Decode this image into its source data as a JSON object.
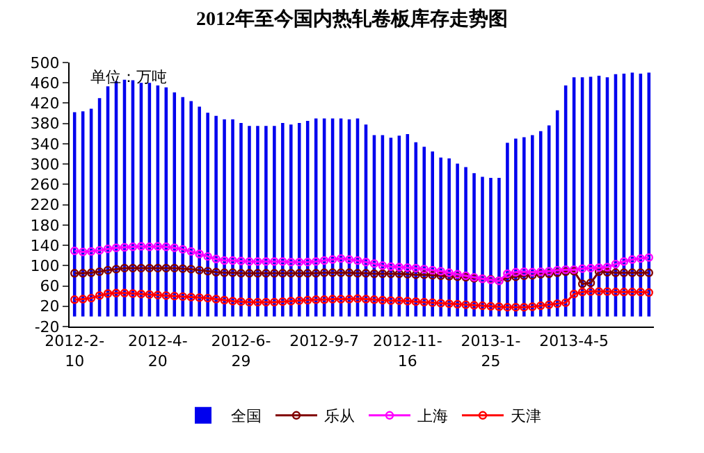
{
  "chart_data": {
    "type": "bar",
    "title": "2012年至今国内热轧卷板库存走势图",
    "annotations": [
      "单位：万吨"
    ],
    "categories": [
      "2012-2-10",
      null,
      null,
      null,
      null,
      null,
      null,
      null,
      null,
      null,
      "2012-4-20",
      null,
      null,
      null,
      null,
      null,
      null,
      null,
      null,
      null,
      "2012-6-29",
      null,
      null,
      null,
      null,
      null,
      null,
      null,
      null,
      null,
      "2012-9-7",
      null,
      null,
      null,
      null,
      null,
      null,
      null,
      null,
      null,
      "2012-11-16",
      null,
      null,
      null,
      null,
      null,
      null,
      null,
      null,
      null,
      "2013-1-25",
      null,
      null,
      null,
      null,
      null,
      null,
      null,
      null,
      null,
      "2013-4-5",
      null,
      null,
      null,
      null,
      null,
      null,
      null,
      null,
      null
    ],
    "ylim": [
      -20,
      500
    ],
    "yticks": [
      -20,
      20,
      60,
      100,
      140,
      180,
      220,
      260,
      300,
      340,
      380,
      420,
      460,
      500
    ],
    "legend": "bottom",
    "marker": "circle",
    "line_style": "solid",
    "series": [
      {
        "name": "全国",
        "color": "#0000ee",
        "values": [
          402,
          404,
          409,
          430,
          453,
          463,
          466,
          465,
          460,
          460,
          455,
          451,
          441,
          432,
          424,
          413,
          401,
          395,
          388,
          388,
          381,
          375,
          375,
          375,
          375,
          381,
          378,
          381,
          385,
          390,
          390,
          390,
          390,
          388,
          390,
          378,
          357,
          357,
          352,
          356,
          359,
          343,
          334,
          325,
          313,
          311,
          301,
          294,
          282,
          275,
          273,
          273,
          342,
          350,
          353,
          357,
          365,
          376,
          406,
          455,
          471,
          471,
          472,
          474,
          471,
          477,
          478,
          480,
          478,
          480
        ]
      },
      {
        "name": "乐从",
        "type": "line",
        "color": "#800000",
        "values": [
          85,
          85,
          86,
          88,
          91,
          93,
          95,
          95,
          95,
          95,
          95,
          95,
          95,
          94,
          93,
          91,
          89,
          87,
          86,
          86,
          85,
          85,
          85,
          85,
          85,
          85,
          85,
          85,
          85,
          85,
          86,
          86,
          86,
          86,
          85,
          85,
          84,
          84,
          84,
          84,
          83,
          82,
          82,
          81,
          80,
          79,
          78,
          77,
          75,
          74,
          73,
          70,
          76,
          78,
          80,
          81,
          83,
          84,
          86,
          88,
          89,
          64,
          66,
          88,
          87,
          86,
          86,
          86,
          86,
          86
        ]
      },
      {
        "name": "上海",
        "type": "line",
        "color": "#ff00ff",
        "values": [
          129,
          127,
          128,
          130,
          133,
          135,
          136,
          137,
          138,
          137,
          138,
          137,
          135,
          132,
          128,
          123,
          118,
          113,
          110,
          110,
          109,
          108,
          108,
          108,
          108,
          108,
          107,
          107,
          107,
          108,
          110,
          112,
          114,
          112,
          110,
          107,
          104,
          100,
          98,
          97,
          96,
          95,
          93,
          91,
          89,
          86,
          83,
          80,
          77,
          74,
          72,
          70,
          84,
          87,
          88,
          87,
          88,
          89,
          91,
          92,
          92,
          94,
          95,
          96,
          97,
          103,
          108,
          112,
          114,
          116
        ]
      },
      {
        "name": "天津",
        "type": "line",
        "color": "#ff0000",
        "values": [
          33,
          34,
          36,
          41,
          45,
          46,
          46,
          45,
          44,
          43,
          42,
          41,
          40,
          39,
          38,
          37,
          36,
          34,
          32,
          30,
          29,
          28,
          28,
          28,
          28,
          29,
          30,
          31,
          32,
          33,
          33,
          34,
          34,
          34,
          35,
          34,
          33,
          32,
          31,
          31,
          30,
          29,
          28,
          27,
          26,
          25,
          24,
          23,
          22,
          21,
          20,
          19,
          18,
          18,
          18,
          19,
          21,
          23,
          25,
          27,
          44,
          48,
          49,
          49,
          49,
          48,
          48,
          48,
          48,
          47
        ]
      }
    ]
  }
}
